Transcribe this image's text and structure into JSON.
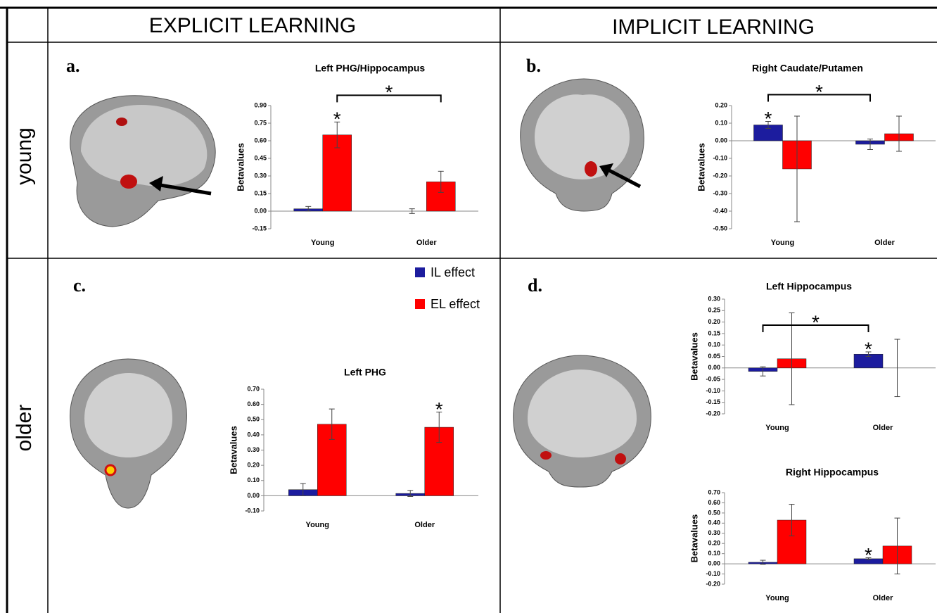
{
  "columns": [
    "EXPLICIT LEARNING",
    "IMPLICIT LEARNING"
  ],
  "rows": [
    "young",
    "older"
  ],
  "panels": [
    "a.",
    "b.",
    "c.",
    "d."
  ],
  "legend": [
    {
      "name": "IL effect",
      "color": "#1c1c9e"
    },
    {
      "name": "EL effect",
      "color": "#ff0000"
    }
  ],
  "chart_data": [
    {
      "type": "bar",
      "title": "Left PHG/Hippocampus",
      "ylabel": "Betavalues",
      "categories": [
        "Young",
        "Older"
      ],
      "series": [
        {
          "color": "#1c1c9e",
          "values": [
            0.02,
            0.0
          ],
          "errors": [
            0.02,
            0.02
          ]
        },
        {
          "color": "#ff0000",
          "values": [
            0.65,
            0.25
          ],
          "errors": [
            0.11,
            0.09
          ]
        }
      ],
      "ylim": [
        -0.15,
        0.9
      ],
      "yticks": [
        {
          "value": -0.15,
          "label": "-0.15"
        },
        {
          "value": 0,
          "label": "0.00"
        },
        {
          "value": 0.15,
          "label": "0.15"
        },
        {
          "value": 0.3,
          "label": "0.30"
        },
        {
          "value": 0.45,
          "label": "0.45"
        },
        {
          "value": 0.6,
          "label": "0.60"
        },
        {
          "value": 0.75,
          "label": "0.75"
        },
        {
          "value": 0.9,
          "label": "0.90"
        }
      ],
      "annotations": [
        {
          "text": "*",
          "series": 1,
          "category": 0
        },
        {
          "text": "*",
          "series": 1,
          "bracket": [
            0,
            1
          ]
        }
      ]
    },
    {
      "type": "bar",
      "title": "Right Caudate/Putamen",
      "ylabel": "Betavalues",
      "categories": [
        "Young",
        "Older"
      ],
      "series": [
        {
          "color": "#1c1c9e",
          "values": [
            0.09,
            -0.02
          ],
          "errors": [
            0.02,
            0.03
          ]
        },
        {
          "color": "#ff0000",
          "values": [
            -0.16,
            0.04
          ],
          "errors": [
            0.3,
            0.1
          ]
        }
      ],
      "ylim": [
        -0.5,
        0.2
      ],
      "yticks": [
        {
          "value": -0.5,
          "label": "-0.50"
        },
        {
          "value": -0.4,
          "label": "-0.40"
        },
        {
          "value": -0.3,
          "label": "-0.30"
        },
        {
          "value": -0.2,
          "label": "-0.20"
        },
        {
          "value": -0.1,
          "label": "-0.10"
        },
        {
          "value": 0,
          "label": "0.00"
        },
        {
          "value": 0.1,
          "label": "0.10"
        },
        {
          "value": 0.2,
          "label": "0.20"
        }
      ],
      "annotations": [
        {
          "text": "*",
          "series": 0,
          "category": 0
        },
        {
          "text": "*",
          "series": 0,
          "bracket": [
            0,
            1
          ]
        }
      ]
    },
    {
      "type": "bar",
      "title": "Left PHG",
      "ylabel": "Betavalues",
      "categories": [
        "Young",
        "Older"
      ],
      "series": [
        {
          "color": "#1c1c9e",
          "values": [
            0.04,
            0.015
          ],
          "errors": [
            0.04,
            0.02
          ]
        },
        {
          "color": "#ff0000",
          "values": [
            0.47,
            0.45
          ],
          "errors": [
            0.1,
            0.1
          ]
        }
      ],
      "ylim": [
        -0.1,
        0.7
      ],
      "yticks": [
        {
          "value": -0.1,
          "label": "-0.10"
        },
        {
          "value": 0,
          "label": "0.00"
        },
        {
          "value": 0.1,
          "label": "0.10"
        },
        {
          "value": 0.2,
          "label": "0.20"
        },
        {
          "value": 0.3,
          "label": "0.30"
        },
        {
          "value": 0.4,
          "label": "0.40"
        },
        {
          "value": 0.5,
          "label": "0.50"
        },
        {
          "value": 0.6,
          "label": "0.60"
        },
        {
          "value": 0.7,
          "label": "0.70"
        }
      ],
      "annotations": [
        {
          "text": "*",
          "series": 1,
          "category": 1
        }
      ]
    },
    {
      "type": "bar",
      "title": "Left Hippocampus",
      "ylabel": "Betavalues",
      "categories": [
        "Young",
        "Older"
      ],
      "series": [
        {
          "color": "#1c1c9e",
          "values": [
            -0.015,
            0.06
          ],
          "errors": [
            0.02,
            0.01
          ]
        },
        {
          "color": "#ff0000",
          "values": [
            0.04,
            0.0
          ],
          "errors": [
            0.2,
            0.125
          ]
        }
      ],
      "ylim": [
        -0.2,
        0.3
      ],
      "yticks": [
        {
          "value": -0.2,
          "label": "-0.20"
        },
        {
          "value": -0.15,
          "label": "-0.15"
        },
        {
          "value": -0.1,
          "label": "-0.10"
        },
        {
          "value": -0.05,
          "label": "-0.05"
        },
        {
          "value": 0,
          "label": "0.00"
        },
        {
          "value": 0.05,
          "label": "0.05"
        },
        {
          "value": 0.1,
          "label": "0.10"
        },
        {
          "value": 0.15,
          "label": "0.15"
        },
        {
          "value": 0.2,
          "label": "0.20"
        },
        {
          "value": 0.25,
          "label": "0.25"
        },
        {
          "value": 0.3,
          "label": "0.30"
        }
      ],
      "annotations": [
        {
          "text": "*",
          "series": 0,
          "category": 1
        },
        {
          "text": "*",
          "series": 0,
          "bracket": [
            0,
            1
          ]
        }
      ]
    },
    {
      "type": "bar",
      "title": "Right Hippocampus",
      "ylabel": "Betavalues",
      "categories": [
        "Young",
        "Older"
      ],
      "series": [
        {
          "color": "#1c1c9e",
          "values": [
            0.015,
            0.05
          ],
          "errors": [
            0.02,
            0.01
          ]
        },
        {
          "color": "#ff0000",
          "values": [
            0.43,
            0.175
          ],
          "errors": [
            0.155,
            0.275
          ]
        }
      ],
      "ylim": [
        -0.2,
        0.7
      ],
      "yticks": [
        {
          "value": -0.2,
          "label": "-0.20"
        },
        {
          "value": -0.1,
          "label": "-0.10"
        },
        {
          "value": 0,
          "label": "0.00"
        },
        {
          "value": 0.1,
          "label": "0.10"
        },
        {
          "value": 0.2,
          "label": "0.20"
        },
        {
          "value": 0.3,
          "label": "0.30"
        },
        {
          "value": 0.4,
          "label": "0.40"
        },
        {
          "value": 0.5,
          "label": "0.50"
        },
        {
          "value": 0.6,
          "label": "0.60"
        },
        {
          "value": 0.7,
          "label": "0.70"
        }
      ],
      "annotations": [
        {
          "text": "*",
          "series": 0,
          "category": 1
        }
      ]
    }
  ]
}
